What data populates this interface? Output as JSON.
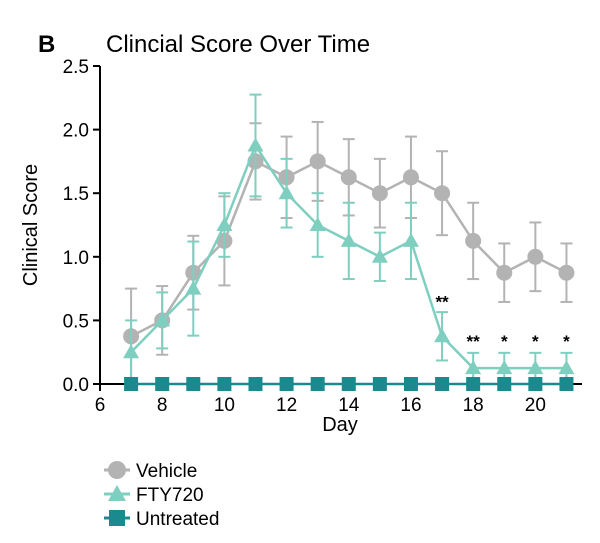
{
  "panel_label": "B",
  "chart_data": {
    "type": "line",
    "title": "Clincial Score Over Time",
    "xlabel": "Day",
    "ylabel": "Clinical Score",
    "xlim": [
      6,
      21.5
    ],
    "ylim": [
      0,
      2.5
    ],
    "xticks": [
      6,
      8,
      10,
      12,
      14,
      16,
      18,
      20
    ],
    "yticks": [
      0.0,
      0.5,
      1.0,
      1.5,
      2.0,
      2.5
    ],
    "ytick_labels": [
      "0.0",
      "0.5",
      "1.0",
      "1.5",
      "2.0",
      "2.5"
    ],
    "grid": false,
    "legend_position": "bottom-left",
    "series": [
      {
        "name": "Vehicle",
        "marker": "circle",
        "color": "#b3b3b3",
        "x": [
          7,
          8,
          9,
          10,
          11,
          12,
          13,
          14,
          15,
          16,
          17,
          18,
          19,
          20,
          21
        ],
        "y": [
          0.375,
          0.5,
          0.875,
          1.125,
          1.75,
          1.625,
          1.75,
          1.625,
          1.5,
          1.625,
          1.5,
          1.125,
          0.875,
          1.0,
          0.875
        ],
        "err": [
          0.375,
          0.27,
          0.29,
          0.35,
          0.3,
          0.32,
          0.31,
          0.3,
          0.27,
          0.32,
          0.33,
          0.3,
          0.23,
          0.27,
          0.23
        ]
      },
      {
        "name": "FTY720",
        "marker": "triangle",
        "color": "#7fcfc0",
        "x": [
          7,
          8,
          9,
          10,
          11,
          12,
          13,
          14,
          15,
          16,
          17,
          18,
          19,
          20,
          21
        ],
        "y": [
          0.25,
          0.5,
          0.75,
          1.25,
          1.875,
          1.5,
          1.25,
          1.125,
          1.0,
          1.125,
          0.375,
          0.125,
          0.125,
          0.125,
          0.125
        ],
        "err": [
          0.25,
          0.22,
          0.37,
          0.25,
          0.4,
          0.27,
          0.25,
          0.3,
          0.19,
          0.3,
          0.19,
          0.12,
          0.12,
          0.12,
          0.12
        ]
      },
      {
        "name": "Untreated",
        "marker": "square",
        "color": "#1a8a8f",
        "x": [
          7,
          8,
          9,
          10,
          11,
          12,
          13,
          14,
          15,
          16,
          17,
          18,
          19,
          20,
          21
        ],
        "y": [
          0,
          0,
          0,
          0,
          0,
          0,
          0,
          0,
          0,
          0,
          0,
          0,
          0,
          0,
          0
        ],
        "err": [
          0,
          0,
          0,
          0,
          0,
          0,
          0,
          0,
          0,
          0,
          0,
          0,
          0,
          0,
          0
        ]
      }
    ],
    "annotations": [
      {
        "x": 17,
        "y": 0.6,
        "text": "**"
      },
      {
        "x": 18,
        "y": 0.29,
        "text": "**"
      },
      {
        "x": 19,
        "y": 0.29,
        "text": "*"
      },
      {
        "x": 20,
        "y": 0.29,
        "text": "*"
      },
      {
        "x": 21,
        "y": 0.29,
        "text": "*"
      }
    ]
  }
}
